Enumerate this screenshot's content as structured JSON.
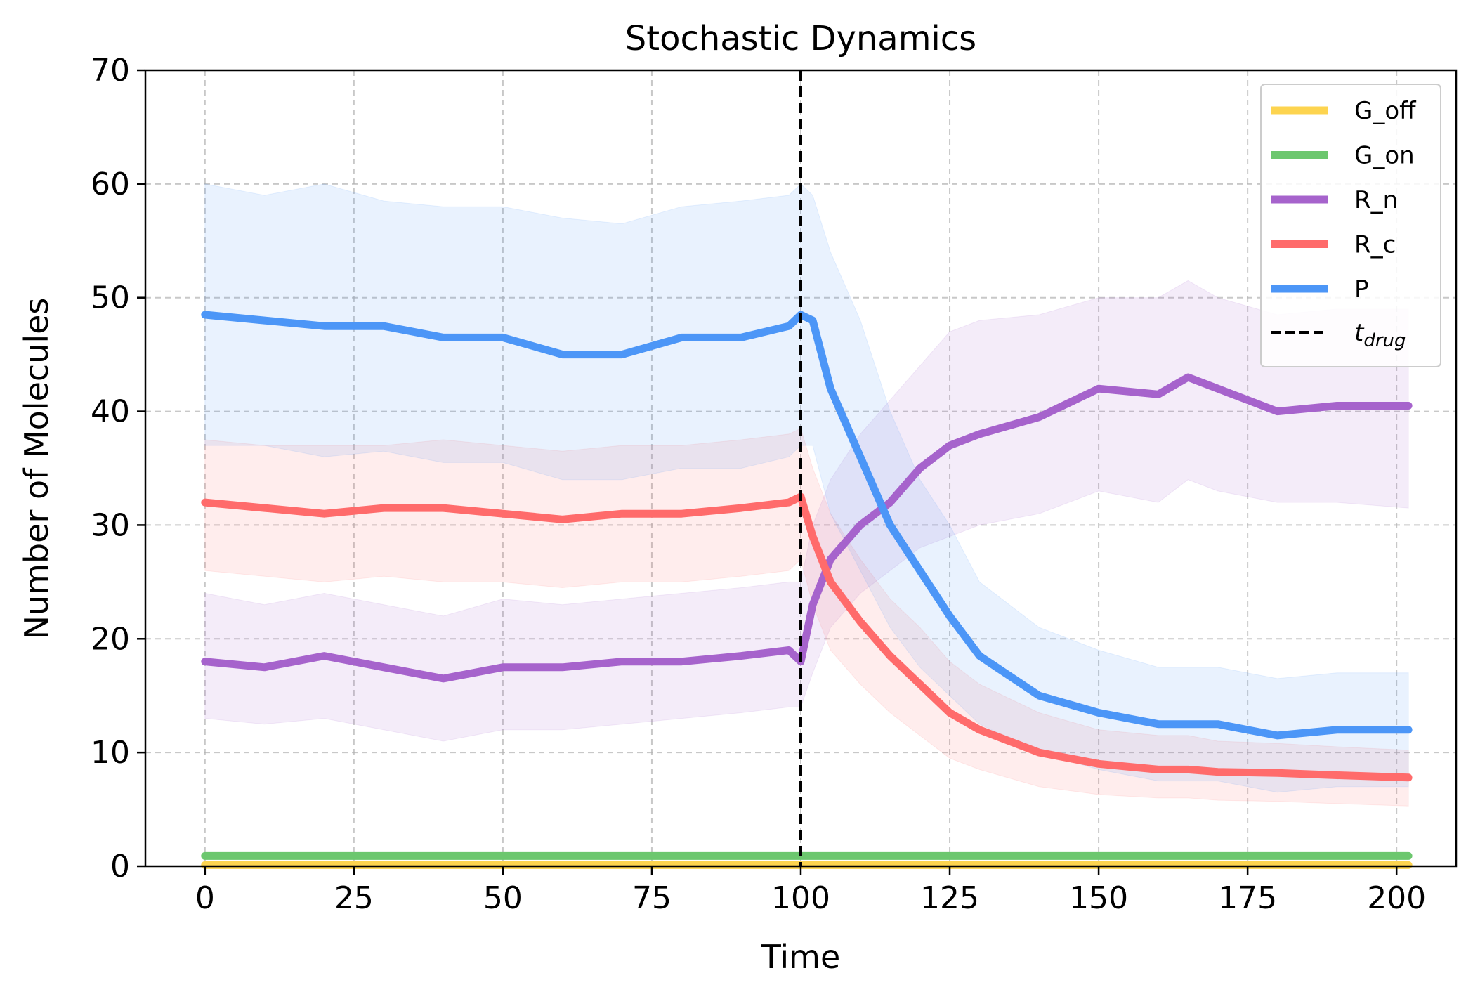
{
  "chart_data": {
    "type": "line",
    "title": "Stochastic Dynamics",
    "xlabel": "Time",
    "ylabel": "Number of Molecules",
    "xlim": [
      -10,
      210
    ],
    "ylim": [
      0,
      70
    ],
    "xticks": [
      0,
      25,
      50,
      75,
      100,
      125,
      150,
      175,
      200
    ],
    "yticks": [
      0,
      10,
      20,
      30,
      40,
      50,
      60,
      70
    ],
    "grid": true,
    "legend_position": "top-right",
    "drug_time": 100,
    "drug_label_base": "t",
    "drug_label_sub": "drug",
    "x": [
      0,
      10,
      20,
      30,
      40,
      50,
      60,
      70,
      80,
      90,
      98,
      100,
      102,
      105,
      110,
      115,
      120,
      125,
      130,
      140,
      150,
      160,
      165,
      170,
      180,
      190,
      202
    ],
    "series": [
      {
        "name": "G_off",
        "color": "#FDD44F",
        "values": [
          0.1,
          0.1,
          0.1,
          0.1,
          0.1,
          0.1,
          0.1,
          0.1,
          0.1,
          0.1,
          0.1,
          0.1,
          0.1,
          0.1,
          0.1,
          0.1,
          0.1,
          0.1,
          0.1,
          0.1,
          0.1,
          0.1,
          0.1,
          0.1,
          0.1,
          0.1,
          0.1
        ],
        "lower": [
          0,
          0,
          0,
          0,
          0,
          0,
          0,
          0,
          0,
          0,
          0,
          0,
          0,
          0,
          0,
          0,
          0,
          0,
          0,
          0,
          0,
          0,
          0,
          0,
          0,
          0,
          0
        ],
        "upper": [
          0.3,
          0.3,
          0.3,
          0.3,
          0.3,
          0.3,
          0.3,
          0.3,
          0.3,
          0.3,
          0.3,
          0.3,
          0.3,
          0.3,
          0.3,
          0.3,
          0.3,
          0.3,
          0.3,
          0.3,
          0.3,
          0.3,
          0.3,
          0.3,
          0.3,
          0.3,
          0.3
        ]
      },
      {
        "name": "G_on",
        "color": "#6CC76E",
        "values": [
          0.9,
          0.9,
          0.9,
          0.9,
          0.9,
          0.9,
          0.9,
          0.9,
          0.9,
          0.9,
          0.9,
          0.9,
          0.9,
          0.9,
          0.9,
          0.9,
          0.9,
          0.9,
          0.9,
          0.9,
          0.9,
          0.9,
          0.9,
          0.9,
          0.9,
          0.9,
          0.9
        ],
        "lower": [
          0.7,
          0.7,
          0.7,
          0.7,
          0.7,
          0.7,
          0.7,
          0.7,
          0.7,
          0.7,
          0.7,
          0.7,
          0.7,
          0.7,
          0.7,
          0.7,
          0.7,
          0.7,
          0.7,
          0.7,
          0.7,
          0.7,
          0.7,
          0.7,
          0.7,
          0.7,
          0.7
        ],
        "upper": [
          1.1,
          1.1,
          1.1,
          1.1,
          1.1,
          1.1,
          1.1,
          1.1,
          1.1,
          1.1,
          1.1,
          1.1,
          1.1,
          1.1,
          1.1,
          1.1,
          1.1,
          1.1,
          1.1,
          1.1,
          1.1,
          1.1,
          1.1,
          1.1,
          1.1,
          1.1,
          1.1
        ]
      },
      {
        "name": "R_n",
        "color": "#A663CC",
        "values": [
          18,
          17.5,
          18.5,
          17.5,
          16.5,
          17.5,
          17.5,
          18,
          18,
          18.5,
          19,
          18,
          23,
          27,
          30,
          32,
          35,
          37,
          38,
          39.5,
          42,
          41.5,
          43,
          42,
          40,
          40.5,
          40.5
        ],
        "lower": [
          13,
          12.5,
          13,
          12,
          11,
          12,
          12,
          12.5,
          13,
          13.5,
          14,
          14,
          17,
          21,
          24,
          26,
          28,
          29,
          30,
          31,
          33,
          32,
          34,
          33,
          32,
          32,
          31.5
        ],
        "upper": [
          24,
          23,
          24,
          23,
          22,
          23.5,
          23,
          23.5,
          24,
          24.5,
          25,
          25,
          30,
          34,
          38,
          41,
          44,
          47,
          48,
          48.5,
          50,
          50,
          51.5,
          50,
          48.5,
          49,
          49
        ]
      },
      {
        "name": "R_c",
        "color": "#FF6B6B",
        "values": [
          32,
          31.5,
          31,
          31.5,
          31.5,
          31,
          30.5,
          31,
          31,
          31.5,
          32,
          32.5,
          29,
          25,
          21.5,
          18.5,
          16,
          13.5,
          12,
          10,
          9,
          8.5,
          8.5,
          8.3,
          8.2,
          8,
          7.8
        ],
        "lower": [
          26,
          25.5,
          25,
          25.5,
          25,
          25,
          24.5,
          25,
          25,
          25.5,
          26,
          27,
          23,
          19,
          16,
          13.5,
          11.5,
          9.5,
          8.5,
          7,
          6.3,
          6,
          6,
          5.8,
          5.7,
          5.5,
          5.3
        ],
        "upper": [
          37.5,
          37,
          37,
          37,
          37.5,
          37,
          36.5,
          37,
          37,
          37.5,
          38,
          38.5,
          35,
          31,
          27,
          23.5,
          21,
          18,
          16,
          13.5,
          12,
          11.5,
          11.5,
          11,
          10.8,
          10.5,
          10.2
        ]
      },
      {
        "name": "P",
        "color": "#4C96F7",
        "values": [
          48.5,
          48,
          47.5,
          47.5,
          46.5,
          46.5,
          45,
          45,
          46.5,
          46.5,
          47.5,
          48.5,
          48,
          42,
          36,
          30,
          26,
          22,
          18.5,
          15,
          13.5,
          12.5,
          12.5,
          12.5,
          11.5,
          12,
          12
        ],
        "lower": [
          37,
          37,
          36,
          36.5,
          35.5,
          35.5,
          34,
          34,
          35,
          35,
          36,
          37,
          37,
          31,
          26,
          21,
          17.5,
          15,
          12.5,
          10,
          8.5,
          7.5,
          7.5,
          7.5,
          6.5,
          7,
          7
        ],
        "upper": [
          60,
          59,
          60,
          58.5,
          58,
          58,
          57,
          56.5,
          58,
          58.5,
          59,
          60,
          59,
          54,
          48,
          40,
          34,
          30,
          25,
          21,
          19,
          17.5,
          17.5,
          17.5,
          16.5,
          17,
          17
        ]
      }
    ]
  }
}
